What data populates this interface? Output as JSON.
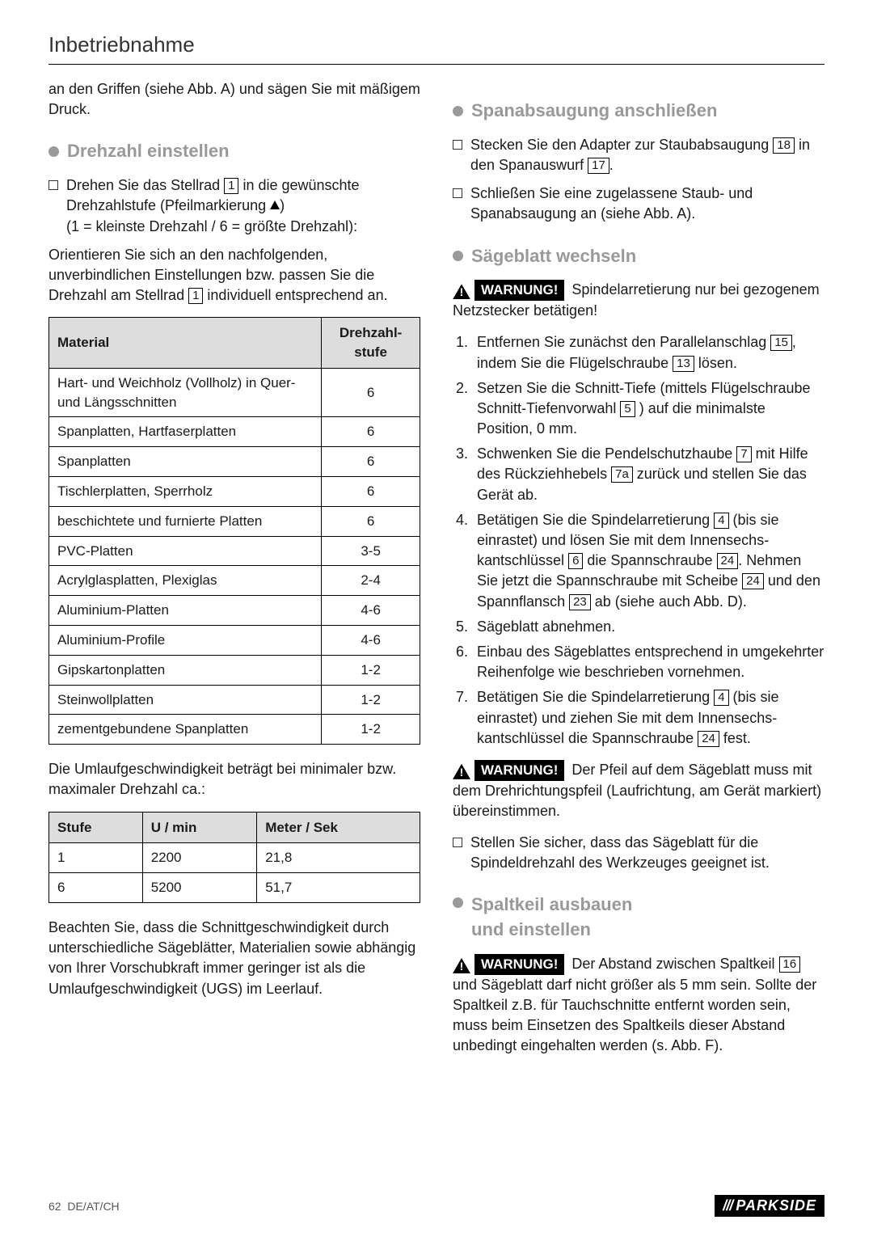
{
  "page_title": "Inbetriebnahme",
  "intro_text": "an den Griffen (siehe Abb. A) und sägen Sie mit mäßigem Druck.",
  "section_drehzahl": {
    "title": "Drehzahl einstellen",
    "bullet": "Drehen Sie das Stellrad ",
    "bullet_ref": "1",
    "bullet_cont": " in die gewünschte Drehzahlstufe (Pfeilmarkierung ",
    "bullet_end": ")",
    "range_note": "(1 = kleinste Drehzahl / 6 = größte Drehzahl):",
    "orient1": "Orientieren Sie sich an den nachfolgenden, unverbindlichen Einstellungen bzw. passen Sie die Drehzahl am Stellrad ",
    "orient_ref": "1",
    "orient2": " individuell entsprechend an."
  },
  "material_table": {
    "headers": [
      "Material",
      "Drehzahl-stufe"
    ],
    "rows": [
      [
        "Hart- und Weichholz (Vollholz) in Quer- und Längsschnitten",
        "6"
      ],
      [
        "Spanplatten, Hartfaserplatten",
        "6"
      ],
      [
        "Spanplatten",
        "6"
      ],
      [
        "Tischlerplatten, Sperrholz",
        "6"
      ],
      [
        "beschichtete und furnierte Platten",
        "6"
      ],
      [
        "PVC-Platten",
        "3-5"
      ],
      [
        "Acrylglasplatten, Plexiglas",
        "2-4"
      ],
      [
        "Aluminium-Platten",
        "4-6"
      ],
      [
        "Aluminium-Profile",
        "4-6"
      ],
      [
        "Gipskartonplatten",
        "1-2"
      ],
      [
        "Steinwollplatten",
        "1-2"
      ],
      [
        "zementgebundene Spanplatten",
        "1-2"
      ]
    ]
  },
  "speed_intro": "Die Umlaufgeschwindigkeit beträgt bei minimaler bzw. maximaler Drehzahl ca.:",
  "speed_table": {
    "headers": [
      "Stufe",
      "U / min",
      "Meter / Sek"
    ],
    "rows": [
      [
        "1",
        "2200",
        "21,8"
      ],
      [
        "6",
        "5200",
        "51,7"
      ]
    ]
  },
  "speed_note": "Beachten Sie, dass die Schnittgeschwindigkeit durch unterschiedliche Sägeblätter, Materialien sowie abhängig von Ihrer Vorschubkraft immer geringer ist als die Umlaufgeschwindigkeit (UGS) im Leerlauf.",
  "section_span": {
    "title": "Spanabsaugung anschließen",
    "b1a": "Stecken Sie den Adapter zur Staubabsaugung ",
    "b1r1": "18",
    "b1b": " in den Spanauswurf ",
    "b1r2": "17",
    "b1c": ".",
    "b2": "Schließen Sie eine zugelassene Staub- und Spanabsaugung an (siehe Abb. A)."
  },
  "section_blade": {
    "title": "Sägeblatt wechseln",
    "warn_label": "WARNUNG!",
    "warn_text": " Spindelarretierung nur bei gezogenem Netzstecker betätigen!",
    "steps": [
      {
        "pre": "Entfernen Sie zunächst den Parallelanschlag ",
        "r1": "15",
        "mid": ", indem Sie die Flügelschraube ",
        "r2": "13",
        "post": " lösen."
      },
      {
        "pre": "Setzen Sie die Schnitt-Tiefe (mittels Flügelschraube Schnitt-Tiefenvorwahl ",
        "r1": "5",
        "post": " ) auf die minimalste Position, 0 mm."
      },
      {
        "pre": "Schwenken Sie die Pendelschutzhaube ",
        "r1": "7",
        "mid": " mit Hilfe des Rückziehhebels ",
        "r2": "7a",
        "post": " zurück und stellen Sie das Gerät ab."
      },
      {
        "pre": "Betätigen Sie die Spindelarretierung ",
        "r1": "4",
        "mid": " (bis sie einrastet) und lösen Sie mit dem Innensechs­kantschlüssel ",
        "r2": "6",
        "mid2": " die Spannschraube ",
        "r3": "24",
        "mid3": ". Nehmen Sie jetzt die Spannschraube mit Scheibe ",
        "r4": "24",
        "mid4": " und den Spannflansch ",
        "r5": "23",
        "post": " ab (siehe auch Abb. D)."
      },
      {
        "pre": "Sägeblatt abnehmen."
      },
      {
        "pre": "Einbau des Sägeblattes entsprechend in umge­kehrter Reihenfolge wie beschrieben vornehmen."
      },
      {
        "pre": "Betätigen Sie die Spindelarretierung ",
        "r1": "4",
        "mid": " (bis sie einrastet) und ziehen Sie mit dem Innensechs­kantschlüssel die Spannschraube ",
        "r2": "24",
        "post": " fest."
      }
    ],
    "warn2_text": " Der Pfeil auf dem Sägeblatt muss mit dem Drehrichtungspfeil (Laufrichtung, am Gerät markiert) übereinstimmen.",
    "bullet3": "Stellen Sie sicher, dass das Sägeblatt für die Spindeldrehzahl des Werkzeuges geeignet ist."
  },
  "section_spalt": {
    "title1": "Spaltkeil ausbauen",
    "title2": "und einstellen",
    "warn_text_a": " Der Abstand zwischen Spalt­keil ",
    "warn_ref": "16",
    "warn_text_b": " und Sägeblatt darf nicht größer als 5 mm sein. Sollte der Spaltkeil z.B. für Tauchschnitte entfernt worden sein, muss beim Einsetzen des Spaltkeils dieser Abstand unbedingt eingehalten werden (s. Abb. F)."
  },
  "footer": {
    "page": "62",
    "region": "DE/AT/CH",
    "brand": "PARKSIDE"
  }
}
